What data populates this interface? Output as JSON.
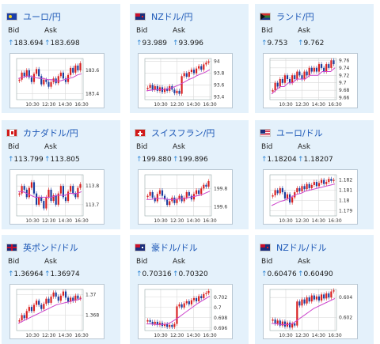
{
  "labels": {
    "bid": "Bid",
    "ask": "Ask",
    "arrow": "↑"
  },
  "colors": {
    "up_candle": "#d92020",
    "down_candle": "#1a3d9e",
    "ma_line": "#cc44cc",
    "grid": "#d8d8d8",
    "title": "#1a56b6",
    "arrow": "#2e86d6"
  },
  "pairs": [
    {
      "name": "ユーロ/円",
      "flag": "eu",
      "bid": "183.694",
      "ask": "183.698",
      "chart_data": {
        "type": "line",
        "x_ticks": [
          "10:30",
          "12:30",
          "14:30",
          "16:30"
        ],
        "y_ticks": [
          "183.6",
          "183.4"
        ],
        "ylim": [
          183.35,
          183.7
        ],
        "series": [
          {
            "values": [
              183.52,
              183.58,
              183.55,
              183.6,
              183.54,
              183.5,
              183.57,
              183.61,
              183.55,
              183.48,
              183.52,
              183.5,
              183.46,
              183.5,
              183.53,
              183.49,
              183.55,
              183.58,
              183.53,
              183.5,
              183.56,
              183.62,
              183.58,
              183.64,
              183.6,
              183.66
            ]
          }
        ],
        "ma": [
          183.53,
          183.54,
          183.55,
          183.55,
          183.54,
          183.53,
          183.53,
          183.52,
          183.52,
          183.51,
          183.51,
          183.52,
          183.53,
          183.54,
          183.56,
          183.57
        ]
      }
    },
    {
      "name": "NZドル/円",
      "flag": "nz",
      "bid": "93.989",
      "ask": "93.996",
      "chart_data": {
        "type": "line",
        "x_ticks": [
          "10:30",
          "12:30",
          "14:30",
          "16:30"
        ],
        "y_ticks": [
          "94",
          "93.8",
          "93.6",
          "93.4"
        ],
        "ylim": [
          93.35,
          94.05
        ],
        "series": [
          {
            "values": [
              93.55,
              93.6,
              93.52,
              93.58,
              93.5,
              93.56,
              93.48,
              93.54,
              93.5,
              93.58,
              93.52,
              93.46,
              93.5,
              93.45,
              93.75,
              93.8,
              93.74,
              93.82,
              93.86,
              93.8,
              93.88,
              93.92,
              93.86,
              93.95,
              93.98,
              94.0
            ]
          }
        ],
        "ma": [
          93.5,
          93.51,
          93.52,
          93.52,
          93.52,
          93.53,
          93.55,
          93.58,
          93.61,
          93.65,
          93.69,
          93.72,
          93.76,
          93.79,
          93.82,
          93.86
        ]
      }
    },
    {
      "name": "ランド/円",
      "flag": "za",
      "bid": "9.753",
      "ask": "9.762",
      "chart_data": {
        "type": "line",
        "x_ticks": [
          "10:30",
          "12:30",
          "14:30",
          "16:30"
        ],
        "y_ticks": [
          "9.76",
          "9.74",
          "9.72",
          "9.7",
          "9.68",
          "9.66"
        ],
        "ylim": [
          9.655,
          9.765
        ],
        "series": [
          {
            "values": [
              9.68,
              9.7,
              9.69,
              9.71,
              9.7,
              9.72,
              9.71,
              9.7,
              9.72,
              9.71,
              9.73,
              9.72,
              9.71,
              9.73,
              9.72,
              9.74,
              9.73,
              9.74,
              9.73,
              9.75,
              9.74,
              9.73,
              9.75,
              9.74,
              9.76,
              9.75
            ]
          }
        ],
        "ma": [
          9.67,
          9.68,
          9.69,
          9.69,
          9.7,
          9.7,
          9.71,
          9.71,
          9.71,
          9.72,
          9.72,
          9.72,
          9.73,
          9.73,
          9.73,
          9.74
        ]
      }
    },
    {
      "name": "カナダドル/円",
      "flag": "ca",
      "bid": "113.799",
      "ask": "113.805",
      "chart_data": {
        "type": "line",
        "x_ticks": [
          "10:30",
          "12:30",
          "14:30",
          "16:30"
        ],
        "y_ticks": [
          "113.8",
          "113.7"
        ],
        "ylim": [
          113.64,
          113.86
        ],
        "series": [
          {
            "values": [
              113.76,
              113.8,
              113.78,
              113.74,
              113.79,
              113.82,
              113.76,
              113.7,
              113.74,
              113.72,
              113.68,
              113.74,
              113.78,
              113.72,
              113.75,
              113.7,
              113.76,
              113.8,
              113.74,
              113.72,
              113.77,
              113.8,
              113.76,
              113.74,
              113.79,
              113.81
            ]
          }
        ],
        "ma": [
          113.77,
          113.77,
          113.76,
          113.75,
          113.74,
          113.74,
          113.74,
          113.74,
          113.74,
          113.75,
          113.75,
          113.75,
          113.76,
          113.76,
          113.76,
          113.77
        ]
      }
    },
    {
      "name": "スイスフラン/円",
      "flag": "ch",
      "bid": "199.880",
      "ask": "199.896",
      "chart_data": {
        "type": "line",
        "x_ticks": [
          "10:30",
          "12:30",
          "14:30",
          "16:30"
        ],
        "y_ticks": [
          "199.8",
          "199.6"
        ],
        "ylim": [
          199.5,
          199.95
        ],
        "series": [
          {
            "values": [
              199.72,
              199.76,
              199.7,
              199.66,
              199.74,
              199.78,
              199.72,
              199.68,
              199.62,
              199.66,
              199.7,
              199.64,
              199.68,
              199.72,
              199.66,
              199.7,
              199.76,
              199.72,
              199.68,
              199.74,
              199.78,
              199.74,
              199.8,
              199.84,
              199.82,
              199.88
            ]
          }
        ],
        "ma": [
          199.68,
          199.68,
          199.69,
          199.69,
          199.69,
          199.68,
          199.68,
          199.68,
          199.69,
          199.69,
          199.7,
          199.71,
          199.72,
          199.73,
          199.75,
          199.77
        ]
      }
    },
    {
      "name": "ユーロ/ドル",
      "flag": "us",
      "bid": "1.18204",
      "ask": "1.18207",
      "chart_data": {
        "type": "line",
        "x_ticks": [
          "10:30",
          "12:30",
          "14:30",
          "16:30"
        ],
        "y_ticks": [
          "1.182",
          "1.181",
          "1.18",
          "1.179"
        ],
        "ylim": [
          1.1785,
          1.1825
        ],
        "series": [
          {
            "values": [
              1.1805,
              1.181,
              1.1807,
              1.1812,
              1.1808,
              1.1802,
              1.1806,
              1.1798,
              1.1803,
              1.1808,
              1.1812,
              1.1809,
              1.1814,
              1.1811,
              1.1816,
              1.1812,
              1.1815,
              1.1818,
              1.1814,
              1.1817,
              1.182,
              1.1816,
              1.1818,
              1.1821,
              1.1819,
              1.182
            ]
          }
        ],
        "ma": [
          1.1795,
          1.1797,
          1.1799,
          1.18,
          1.1802,
          1.1804,
          1.1806,
          1.1807,
          1.1809,
          1.181,
          1.1811,
          1.1812,
          1.1813,
          1.1814,
          1.1815,
          1.1816
        ]
      }
    },
    {
      "name": "英ポンド/ドル",
      "flag": "gb",
      "bid": "1.36964",
      "ask": "1.36974",
      "chart_data": {
        "type": "line",
        "x_ticks": [
          "10:30",
          "12:30",
          "14:30",
          "16:30"
        ],
        "y_ticks": [
          "1.37",
          "1.368"
        ],
        "ylim": [
          1.3665,
          1.3705
        ],
        "series": [
          {
            "values": [
              1.3675,
              1.368,
              1.3677,
              1.3684,
              1.3688,
              1.3684,
              1.369,
              1.3694,
              1.369,
              1.3686,
              1.3691,
              1.3696,
              1.3692,
              1.3698,
              1.3702,
              1.3698,
              1.3694,
              1.3699,
              1.3703,
              1.3697,
              1.3693,
              1.3697,
              1.3694,
              1.3699,
              1.3696,
              1.3697
            ]
          }
        ],
        "ma": [
          1.3672,
          1.3674,
          1.3676,
          1.3678,
          1.368,
          1.3682,
          1.3684,
          1.3686,
          1.3688,
          1.369,
          1.3691,
          1.3692,
          1.3693,
          1.3694,
          1.3695,
          1.3696
        ]
      }
    },
    {
      "name": "豪ドル/ドル",
      "flag": "au",
      "bid": "0.70316",
      "ask": "0.70320",
      "chart_data": {
        "type": "line",
        "x_ticks": [
          "10:30",
          "12:30",
          "14:30",
          "16:30"
        ],
        "y_ticks": [
          "0.702",
          "0.7",
          "0.698",
          "0.696"
        ],
        "ylim": [
          0.6955,
          0.7035
        ],
        "series": [
          {
            "values": [
              0.6975,
              0.6972,
              0.6968,
              0.6972,
              0.6966,
              0.697,
              0.6964,
              0.6968,
              0.6962,
              0.6966,
              0.6962,
              0.6968,
              0.7002,
              0.7006,
              0.7,
              0.7008,
              0.7012,
              0.7006,
              0.7014,
              0.7018,
              0.7012,
              0.7022,
              0.7018,
              0.7026,
              0.7028,
              0.7032
            ]
          }
        ],
        "ma": [
          0.6968,
          0.6968,
          0.6967,
          0.6967,
          0.6967,
          0.6968,
          0.6972,
          0.6977,
          0.6983,
          0.6989,
          0.6995,
          0.7001,
          0.7007,
          0.7012,
          0.7017,
          0.7022
        ]
      }
    },
    {
      "name": "NZドル/ドル",
      "flag": "nz",
      "bid": "0.60476",
      "ask": "0.60490",
      "chart_data": {
        "type": "line",
        "x_ticks": [
          "10:30",
          "12:30",
          "14:30",
          "16:30"
        ],
        "y_ticks": [
          "0.604",
          "0.602"
        ],
        "ylim": [
          0.6007,
          0.6048
        ],
        "series": [
          {
            "values": [
              0.6018,
              0.6014,
              0.6017,
              0.6012,
              0.6016,
              0.6011,
              0.6015,
              0.601,
              0.6014,
              0.6012,
              0.6036,
              0.6032,
              0.6038,
              0.6034,
              0.604,
              0.6036,
              0.6042,
              0.6038,
              0.6041,
              0.6037,
              0.6043,
              0.6039,
              0.6044,
              0.604,
              0.6046,
              0.6047
            ]
          }
        ],
        "ma": [
          0.6014,
          0.6014,
          0.6013,
          0.6013,
          0.6013,
          0.6014,
          0.6017,
          0.602,
          0.6023,
          0.6026,
          0.6029,
          0.6031,
          0.6033,
          0.6035,
          0.6037,
          0.6039
        ]
      }
    }
  ]
}
